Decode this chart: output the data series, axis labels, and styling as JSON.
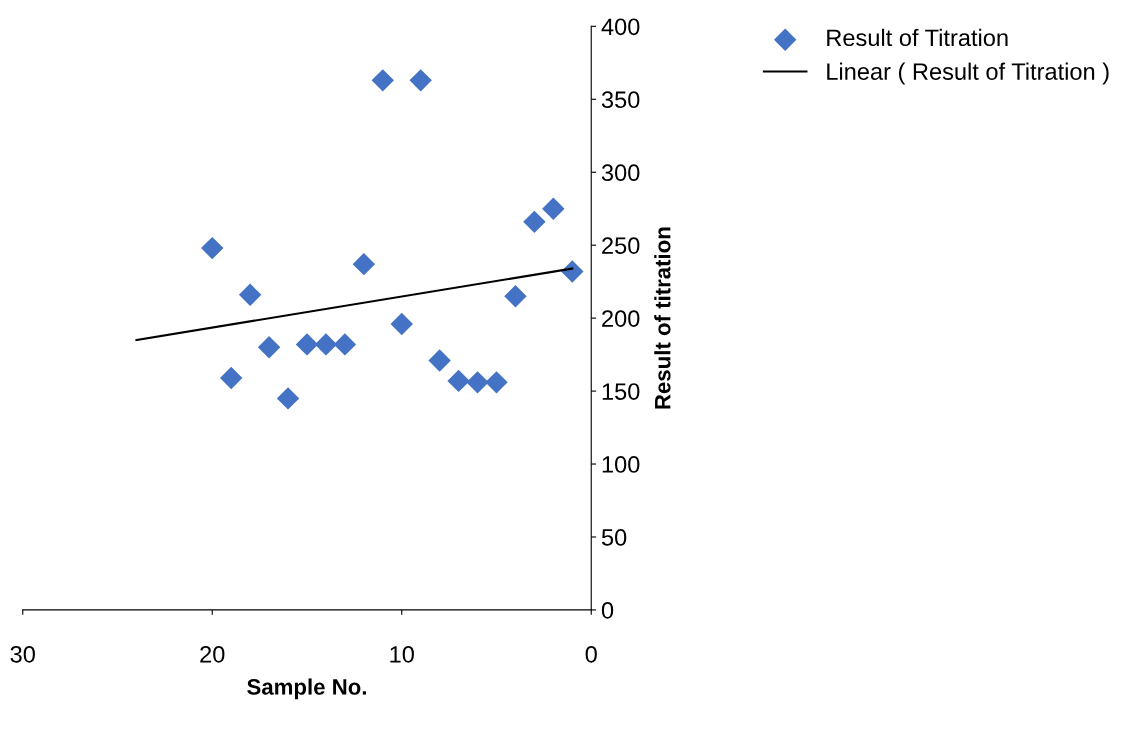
{
  "chart_data": {
    "type": "scatter",
    "xlabel": "Sample No.",
    "ylabel": "Result of titration",
    "xlim": [
      30,
      0
    ],
    "xticks": [
      30,
      20,
      10,
      0
    ],
    "ylim": [
      0,
      400
    ],
    "yticks": [
      0,
      50,
      100,
      150,
      200,
      250,
      300,
      350,
      400
    ],
    "grid": false,
    "legend": "top right",
    "marker": "diamond",
    "series": [
      {
        "name": "Result of Titration",
        "color": "#4472c4",
        "x": [
          1,
          2,
          3,
          4,
          5,
          6,
          7,
          8,
          9,
          10,
          11,
          12,
          13,
          14,
          15,
          16,
          17,
          18,
          19,
          20
        ],
        "values": [
          232,
          275,
          266,
          215,
          156,
          156,
          157,
          171,
          363,
          196,
          363,
          237,
          182,
          182,
          182,
          145,
          180,
          216,
          159,
          248
        ]
      },
      {
        "name": "Linear ( Result of Titration )",
        "type": "line",
        "color": "#000000",
        "marker": "none",
        "x": [
          24,
          1
        ],
        "values": [
          185,
          234
        ]
      }
    ]
  }
}
